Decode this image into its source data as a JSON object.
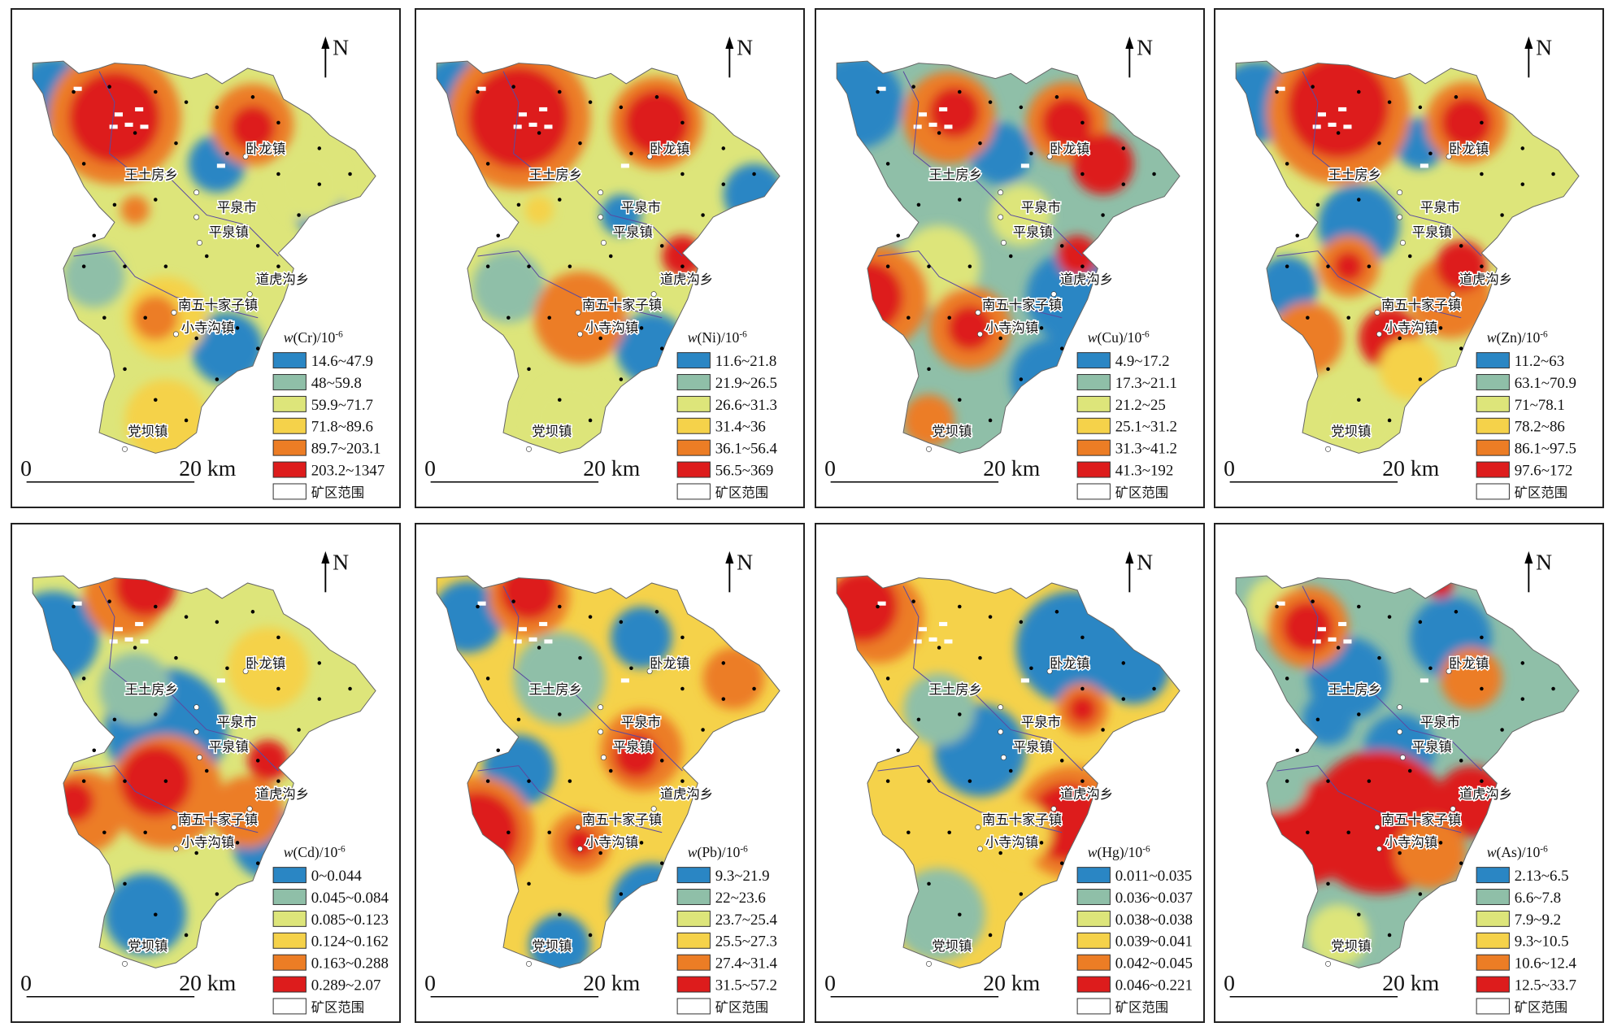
{
  "colors": [
    "#2a86c4",
    "#8fbfa8",
    "#dde57a",
    "#f5d24a",
    "#ec7d25",
    "#dd1c1c"
  ],
  "mining_area_color": "#ffffff",
  "north_label": "N",
  "scale": {
    "start": "0",
    "end": "20 km"
  },
  "mining_area_label": "矿区范围",
  "towns": [
    "卧龙镇",
    "王土房乡",
    "平泉市",
    "平泉镇",
    "道虎沟乡",
    "南五十家子镇",
    "小寺沟镇",
    "党坝镇"
  ],
  "panels": [
    {
      "element": "Cr",
      "title_prefix": "w",
      "title_el": "(Cr)/10",
      "title_exp": "-6",
      "classes": [
        "14.6~47.9",
        "48~59.8",
        "59.9~71.7",
        "71.8~89.6",
        "89.7~203.1",
        "203.2~1347"
      ]
    },
    {
      "element": "Ni",
      "title_prefix": "w",
      "title_el": "(Ni)/10",
      "title_exp": "-6",
      "classes": [
        "11.6~21.8",
        "21.9~26.5",
        "26.6~31.3",
        "31.4~36",
        "36.1~56.4",
        "56.5~369"
      ]
    },
    {
      "element": "Cu",
      "title_prefix": "w",
      "title_el": "(Cu)/10",
      "title_exp": "-6",
      "classes": [
        "4.9~17.2",
        "17.3~21.1",
        "21.2~25",
        "25.1~31.2",
        "31.3~41.2",
        "41.3~192"
      ]
    },
    {
      "element": "Zn",
      "title_prefix": "w",
      "title_el": "(Zn)/10",
      "title_exp": "-6",
      "classes": [
        "11.2~63",
        "63.1~70.9",
        "71~78.1",
        "78.2~86",
        "86.1~97.5",
        "97.6~172"
      ]
    },
    {
      "element": "Cd",
      "title_prefix": "w",
      "title_el": "(Cd)/10",
      "title_exp": "-6",
      "classes": [
        "0~0.044",
        "0.045~0.084",
        "0.085~0.123",
        "0.124~0.162",
        "0.163~0.288",
        "0.289~2.07"
      ]
    },
    {
      "element": "Pb",
      "title_prefix": "w",
      "title_el": "(Pb)/10",
      "title_exp": "-6",
      "classes": [
        "9.3~21.9",
        "22~23.6",
        "23.7~25.4",
        "25.5~27.3",
        "27.4~31.4",
        "31.5~57.2"
      ]
    },
    {
      "element": "Hg",
      "title_prefix": "w",
      "title_el": "(Hg)/10",
      "title_exp": "-6",
      "classes": [
        "0.011~0.035",
        "0.036~0.037",
        "0.038~0.038",
        "0.039~0.041",
        "0.042~0.045",
        "0.046~0.221"
      ]
    },
    {
      "element": "As",
      "title_prefix": "w",
      "title_el": "(As)/10",
      "title_exp": "-6",
      "classes": [
        "2.13~6.5",
        "6.6~7.8",
        "7.9~9.2",
        "9.3~10.5",
        "10.6~12.4",
        "12.5~33.7"
      ]
    }
  ]
}
